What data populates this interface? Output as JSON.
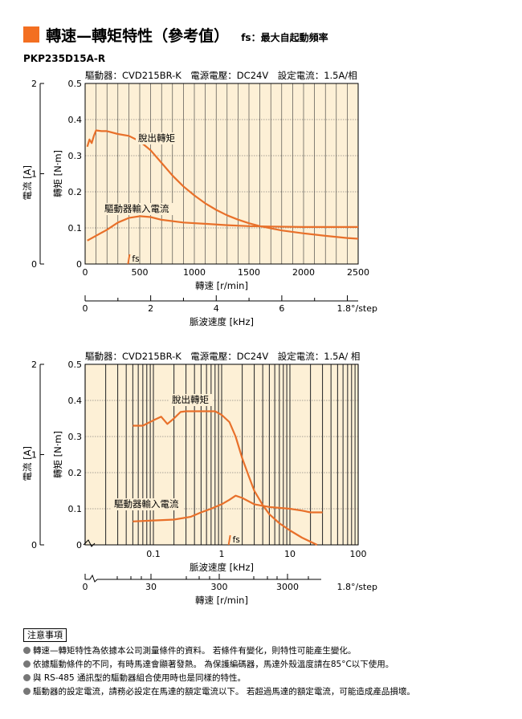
{
  "header": {
    "title": "轉速—轉矩特性（參考值）",
    "subtitle": "fs：最大自起動頻率",
    "accent_color": "#f36f21"
  },
  "model": "PKP235D15A-R",
  "notes": {
    "heading": "注意事項",
    "items": [
      "轉速—轉矩特性為依據本公司測量條件的資料。 若條件有變化，則特性可能產生變化。",
      "依據驅動條件的不同，有時馬達會顯著發熱。 為保護編碼器，馬達外殼溫度請在85°C以下使用。",
      "與 RS-485 通訊型的驅動器組合使用時也是同樣的特性。",
      "驅動器的設定電流，請務必設定在馬達的額定電流以下。 若超過馬達的額定電流，可能造成產品損壞。"
    ]
  },
  "chart_data": [
    {
      "type": "line",
      "conditions": "驅動器：CVD215BR-K　電源電壓：DC24V　設定電流：1.5A/相",
      "x": {
        "label": "轉速 [r/min]",
        "scale": "linear",
        "range": [
          0,
          2500
        ],
        "ticks": [
          0,
          500,
          1000,
          1500,
          2000,
          2500
        ]
      },
      "x2": {
        "label": "脈波速度 [kHz]",
        "range": [
          0,
          8.33
        ],
        "ticks": [
          0,
          2,
          4,
          6
        ],
        "unit_note": "1.8°/step"
      },
      "y": {
        "label": "轉矩 [N·m]",
        "range": [
          0,
          0.5
        ],
        "ticks": [
          0,
          0.1,
          0.2,
          0.3,
          0.4,
          0.5
        ]
      },
      "y2": {
        "label": "電流 [A]",
        "range": [
          0,
          2
        ],
        "ticks": [
          0,
          1,
          2
        ]
      },
      "grid": true,
      "fs": {
        "label": "fs",
        "x": 400
      },
      "series": [
        {
          "name": "脫出轉矩",
          "color": "#e8702a",
          "points": [
            [
              20,
              0.325
            ],
            [
              40,
              0.345
            ],
            [
              60,
              0.335
            ],
            [
              80,
              0.355
            ],
            [
              100,
              0.37
            ],
            [
              150,
              0.368
            ],
            [
              200,
              0.368
            ],
            [
              300,
              0.36
            ],
            [
              400,
              0.355
            ],
            [
              500,
              0.34
            ],
            [
              600,
              0.315
            ],
            [
              700,
              0.28
            ],
            [
              800,
              0.245
            ],
            [
              900,
              0.215
            ],
            [
              1000,
              0.19
            ],
            [
              1100,
              0.168
            ],
            [
              1200,
              0.15
            ],
            [
              1300,
              0.135
            ],
            [
              1400,
              0.123
            ],
            [
              1500,
              0.113
            ],
            [
              1600,
              0.105
            ],
            [
              1800,
              0.093
            ],
            [
              2000,
              0.085
            ],
            [
              2200,
              0.078
            ],
            [
              2400,
              0.072
            ],
            [
              2500,
              0.07
            ]
          ]
        },
        {
          "name": "驅動器輸入電流",
          "color": "#e8702a",
          "axis": "y2",
          "points": [
            [
              20,
              0.26
            ],
            [
              200,
              0.38
            ],
            [
              300,
              0.46
            ],
            [
              400,
              0.51
            ],
            [
              500,
              0.53
            ],
            [
              600,
              0.52
            ],
            [
              700,
              0.49
            ],
            [
              900,
              0.46
            ],
            [
              1100,
              0.445
            ],
            [
              1300,
              0.43
            ],
            [
              1500,
              0.42
            ],
            [
              1700,
              0.415
            ],
            [
              2000,
              0.41
            ],
            [
              2500,
              0.41
            ]
          ]
        }
      ]
    },
    {
      "type": "line",
      "conditions": "驅動器：CVD215BR-K　電源電壓：DC24V　設定電流：1.5A/ 相",
      "x": {
        "label": "脈波速度 [kHz]",
        "scale": "log",
        "range": [
          0.01,
          100
        ],
        "ticks": [
          0.1,
          1,
          10,
          100
        ]
      },
      "x2": {
        "label": "轉速 [r/min]",
        "ticks": [
          0,
          30,
          300,
          3000
        ],
        "unit_note": "1.8°/step"
      },
      "y": {
        "label": "轉矩 [N·m]",
        "range": [
          0,
          0.5
        ],
        "ticks": [
          0,
          0.1,
          0.2,
          0.3,
          0.4,
          0.5
        ]
      },
      "y2": {
        "label": "電流 [A]",
        "range": [
          0,
          2
        ],
        "ticks": [
          0,
          1,
          2
        ]
      },
      "grid": true,
      "fs": {
        "label": "fs",
        "x": 1.3
      },
      "series": [
        {
          "name": "脫出轉矩",
          "color": "#e8702a",
          "points": [
            [
              0.05,
              0.33
            ],
            [
              0.07,
              0.33
            ],
            [
              0.1,
              0.345
            ],
            [
              0.13,
              0.355
            ],
            [
              0.16,
              0.335
            ],
            [
              0.2,
              0.35
            ],
            [
              0.25,
              0.368
            ],
            [
              0.3,
              0.37
            ],
            [
              0.5,
              0.37
            ],
            [
              0.8,
              0.37
            ],
            [
              1,
              0.36
            ],
            [
              1.3,
              0.34
            ],
            [
              1.6,
              0.3
            ],
            [
              2,
              0.24
            ],
            [
              2.5,
              0.19
            ],
            [
              3,
              0.15
            ],
            [
              4,
              0.11
            ],
            [
              5,
              0.085
            ],
            [
              7,
              0.06
            ],
            [
              10,
              0.04
            ],
            [
              15,
              0.02
            ],
            [
              25,
              0.0
            ]
          ]
        },
        {
          "name": "驅動器輸入電流",
          "color": "#e8702a",
          "axis": "y2",
          "points": [
            [
              0.05,
              0.26
            ],
            [
              0.1,
              0.27
            ],
            [
              0.2,
              0.28
            ],
            [
              0.35,
              0.31
            ],
            [
              0.5,
              0.36
            ],
            [
              0.7,
              0.4
            ],
            [
              1,
              0.45
            ],
            [
              1.3,
              0.5
            ],
            [
              1.6,
              0.545
            ],
            [
              2,
              0.52
            ],
            [
              3,
              0.45
            ],
            [
              5,
              0.42
            ],
            [
              10,
              0.4
            ],
            [
              15,
              0.38
            ],
            [
              20,
              0.36
            ],
            [
              30,
              0.36
            ]
          ]
        }
      ]
    }
  ]
}
